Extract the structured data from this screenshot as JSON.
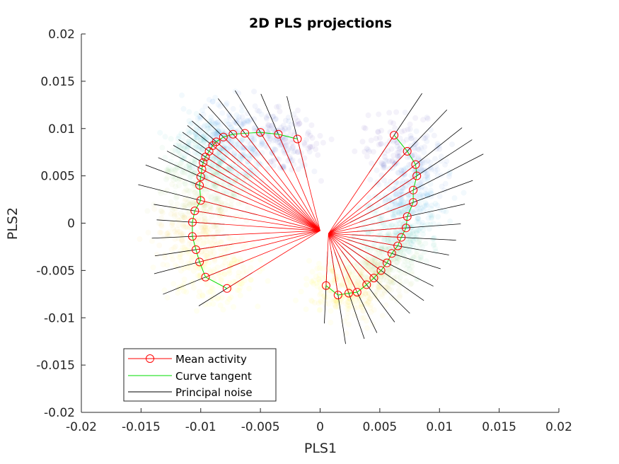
{
  "chart_data": {
    "type": "scatter",
    "title": "2D PLS projections",
    "xlabel": "PLS1",
    "ylabel": "PLS2",
    "xlim": [
      -0.02,
      0.02
    ],
    "ylim": [
      -0.02,
      0.02
    ],
    "xticks": [
      "-0.02",
      "-0.015",
      "-0.01",
      "-0.005",
      "0",
      "0.005",
      "0.01",
      "0.015",
      "0.02"
    ],
    "yticks": [
      "0.02",
      "0.015",
      "0.01",
      "0.005",
      "0",
      "-0.005",
      "-0.01",
      "-0.015",
      "-0.02"
    ],
    "xtick_values": [
      -0.02,
      -0.015,
      -0.01,
      -0.005,
      0,
      0.005,
      0.01,
      0.015,
      0.02
    ],
    "ytick_values": [
      0.02,
      0.015,
      0.01,
      0.005,
      0,
      -0.005,
      -0.01,
      -0.015,
      -0.02
    ],
    "grid": false,
    "legend_position": "bottom-left",
    "colors": {
      "mean_activity": "#ff0000",
      "curve_tangent": "#00dd00",
      "principal_noise": "#000000",
      "cloud_colormap": [
        "#3d26a8",
        "#2c8cf0",
        "#1ebec0",
        "#8fd06a",
        "#fbd23a",
        "#f9fb0e"
      ]
    },
    "series": [
      {
        "name": "Mean activity",
        "marker": "circle",
        "color": "#ff0000",
        "points": [
          [
            -0.0019,
            0.0089
          ],
          [
            -0.0035,
            0.0094
          ],
          [
            -0.005,
            0.0096
          ],
          [
            -0.0063,
            0.0095
          ],
          [
            -0.0073,
            0.0094
          ],
          [
            -0.0081,
            0.0091
          ],
          [
            -0.0087,
            0.0086
          ],
          [
            -0.009,
            0.0082
          ],
          [
            -0.0093,
            0.0076
          ],
          [
            -0.0096,
            0.007
          ],
          [
            -0.0098,
            0.0064
          ],
          [
            -0.0099,
            0.0057
          ],
          [
            -0.01,
            0.0049
          ],
          [
            -0.0101,
            0.004
          ],
          [
            -0.01,
            0.0024
          ],
          [
            -0.0105,
            0.0013
          ],
          [
            -0.0107,
            0.0001
          ],
          [
            -0.0107,
            -0.0014
          ],
          [
            -0.0104,
            -0.0028
          ],
          [
            -0.0101,
            -0.0041
          ],
          [
            -0.0096,
            -0.0057
          ],
          [
            -0.0078,
            -0.0069
          ],
          [
            0.0062,
            0.0093
          ],
          [
            0.0073,
            0.0076
          ],
          [
            0.008,
            0.0062
          ],
          [
            0.0081,
            0.005
          ],
          [
            0.0078,
            0.0035
          ],
          [
            0.0078,
            0.0022
          ],
          [
            0.0073,
            0.0007
          ],
          [
            0.0072,
            -0.0005
          ],
          [
            0.0068,
            -0.0015
          ],
          [
            0.0065,
            -0.0024
          ],
          [
            0.006,
            -0.0032
          ],
          [
            0.0056,
            -0.0042
          ],
          [
            0.0051,
            -0.005
          ],
          [
            0.0045,
            -0.0058
          ],
          [
            0.0039,
            -0.0065
          ],
          [
            0.0031,
            -0.0073
          ],
          [
            0.0024,
            -0.0074
          ],
          [
            0.0015,
            -0.0076
          ],
          [
            0.0005,
            -0.0066
          ]
        ]
      },
      {
        "name": "Curve tangent",
        "color": "#00dd00"
      },
      {
        "name": "Principal noise",
        "color": "#000000"
      }
    ],
    "center_left": [
      0.0,
      -0.0008
    ],
    "center_right": [
      0.0007,
      -0.0011
    ],
    "noise_half_lengths": [
      0.0046,
      0.0045,
      0.0049,
      0.0043,
      0.0036,
      0.0032,
      0.003,
      0.003,
      0.003,
      0.0029,
      0.0031,
      0.0035,
      0.0041,
      0.005,
      0.0055,
      0.0035,
      0.003,
      0.0034,
      0.0035,
      0.004,
      0.004,
      0.003,
      0.005,
      0.0055,
      0.0055,
      0.006,
      0.007,
      0.0055,
      0.005,
      0.0046,
      0.0046,
      0.0044,
      0.0044,
      0.0046,
      0.0048,
      0.0048,
      0.0046,
      0.0046,
      0.005,
      0.0052,
      0.004
    ]
  },
  "legend": {
    "items": [
      {
        "label": "Mean activity"
      },
      {
        "label": "Curve tangent"
      },
      {
        "label": "Principal noise"
      }
    ]
  }
}
